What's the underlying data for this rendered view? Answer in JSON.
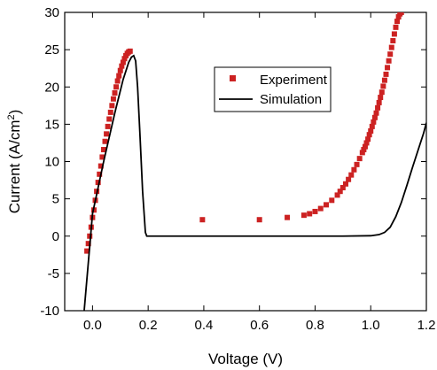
{
  "chart_data": {
    "type": "scatter",
    "xlabel": "Voltage (V)",
    "ylabel_main": "Current (A/cm",
    "ylabel_sup": "2",
    "ylabel_close": ")",
    "xlim": [
      -0.1,
      1.2
    ],
    "ylim": [
      -10,
      30
    ],
    "xticks": [
      0.0,
      0.2,
      0.4,
      0.6,
      0.8,
      1.0,
      1.2
    ],
    "xtick_labels": [
      "0.0",
      "0.2",
      "0.4",
      "0.6",
      "0.8",
      "1.0",
      "1.2"
    ],
    "yticks": [
      -10,
      -5,
      0,
      5,
      10,
      15,
      20,
      25,
      30
    ],
    "ytick_labels": [
      "-10",
      "-5",
      "0",
      "5",
      "10",
      "15",
      "20",
      "25",
      "30"
    ],
    "legend_position": "top-center",
    "series": [
      {
        "name": "Experiment",
        "kind": "markers",
        "marker": "square",
        "color": "#cc2222",
        "x": [
          -0.02,
          -0.015,
          -0.01,
          -0.005,
          0.0,
          0.005,
          0.01,
          0.015,
          0.02,
          0.025,
          0.03,
          0.035,
          0.04,
          0.045,
          0.05,
          0.055,
          0.06,
          0.065,
          0.07,
          0.075,
          0.08,
          0.085,
          0.09,
          0.095,
          0.1,
          0.105,
          0.11,
          0.115,
          0.12,
          0.125,
          0.13,
          0.135,
          0.395,
          0.6,
          0.7,
          0.76,
          0.78,
          0.8,
          0.82,
          0.84,
          0.86,
          0.88,
          0.89,
          0.9,
          0.91,
          0.92,
          0.93,
          0.94,
          0.95,
          0.96,
          0.97,
          0.975,
          0.98,
          0.985,
          0.99,
          0.995,
          1.0,
          1.005,
          1.01,
          1.015,
          1.02,
          1.025,
          1.03,
          1.035,
          1.04,
          1.045,
          1.05,
          1.055,
          1.06,
          1.065,
          1.07,
          1.075,
          1.08,
          1.085,
          1.09,
          1.095,
          1.1,
          1.105,
          1.11
        ],
        "y": [
          -2.0,
          -1.0,
          0.0,
          1.2,
          2.5,
          3.5,
          4.8,
          6.0,
          7.2,
          8.3,
          9.4,
          10.6,
          11.6,
          12.7,
          13.7,
          14.7,
          15.7,
          16.6,
          17.5,
          18.4,
          19.2,
          20.0,
          20.8,
          21.5,
          22.2,
          22.8,
          23.3,
          23.8,
          24.2,
          24.5,
          24.7,
          24.8,
          2.2,
          2.2,
          2.5,
          2.8,
          3.0,
          3.3,
          3.7,
          4.2,
          4.8,
          5.5,
          6.0,
          6.5,
          7.0,
          7.6,
          8.2,
          8.9,
          9.6,
          10.4,
          11.2,
          11.6,
          12.0,
          12.5,
          13.0,
          13.6,
          14.1,
          14.7,
          15.3,
          15.9,
          16.5,
          17.2,
          17.9,
          18.6,
          19.3,
          20.1,
          20.9,
          21.7,
          22.6,
          23.5,
          24.4,
          25.3,
          26.2,
          27.1,
          28.0,
          28.8,
          29.4,
          29.8,
          30.0
        ]
      },
      {
        "name": "Simulation",
        "kind": "line",
        "color": "#000000",
        "x": [
          -0.03,
          0.0,
          0.04,
          0.08,
          0.11,
          0.13,
          0.14,
          0.148,
          0.155,
          0.162,
          0.17,
          0.18,
          0.19,
          0.195,
          0.3,
          0.5,
          0.7,
          0.9,
          1.0,
          1.03,
          1.05,
          1.07,
          1.09,
          1.11,
          1.13,
          1.15,
          1.17,
          1.19,
          1.2
        ],
        "y": [
          -10.0,
          3.0,
          10.0,
          16.5,
          21.0,
          23.3,
          24.0,
          24.2,
          23.5,
          20.0,
          14.0,
          6.0,
          0.5,
          0.0,
          0.0,
          0.0,
          0.0,
          0.0,
          0.05,
          0.2,
          0.5,
          1.2,
          2.6,
          4.5,
          6.8,
          9.2,
          11.5,
          13.8,
          15.2
        ]
      }
    ]
  }
}
